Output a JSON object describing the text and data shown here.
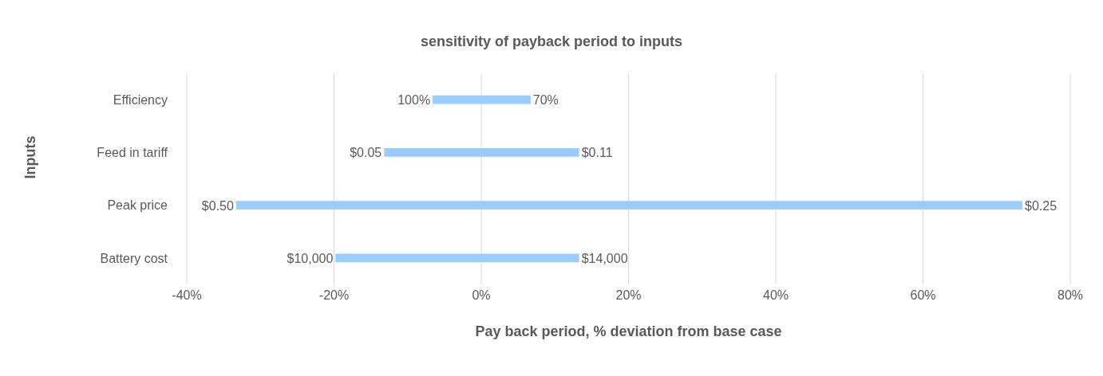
{
  "chart_data": {
    "type": "bar",
    "orientation": "horizontal",
    "title": "sensitivity of payback period to inputs",
    "xlabel": "Pay back period, % deviation from base case",
    "ylabel": "Inputs",
    "categories": [
      "Efficiency",
      "Feed in tariff",
      "Peak price",
      "Battery cost"
    ],
    "base": [
      -6.6,
      -13.2,
      -33.3,
      -19.8
    ],
    "values": [
      13.3,
      26.5,
      106.8,
      33.1
    ],
    "color": "#99ccff",
    "xlim": [
      -40,
      80
    ],
    "xticks": [
      {
        "value": -40,
        "label": "-40%"
      },
      {
        "value": -20,
        "label": "-20%"
      },
      {
        "value": 0,
        "label": "0%"
      },
      {
        "value": 20,
        "label": "20%"
      },
      {
        "value": 40,
        "label": "40%"
      },
      {
        "value": 60,
        "label": "60%"
      },
      {
        "value": 80,
        "label": "80%"
      }
    ],
    "grid": "x",
    "annotations": [
      {
        "text": "100%",
        "x": -6.6,
        "y": "Efficiency"
      },
      {
        "text": "70%",
        "x": 6.7,
        "y": "Efficiency"
      },
      {
        "text": "$0.05",
        "x": -13.2,
        "y": "Feed in tariff"
      },
      {
        "text": "$0.11",
        "x": 13.3,
        "y": "Feed in tariff"
      },
      {
        "text": "$0.50",
        "x": -33.3,
        "y": "Peak price"
      },
      {
        "text": "$0.25",
        "x": 73.5,
        "y": "Peak price"
      },
      {
        "text": "$10,000",
        "x": -19.8,
        "y": "Battery cost"
      },
      {
        "text": "$14,000",
        "x": 13.3,
        "y": "Battery cost"
      }
    ]
  }
}
